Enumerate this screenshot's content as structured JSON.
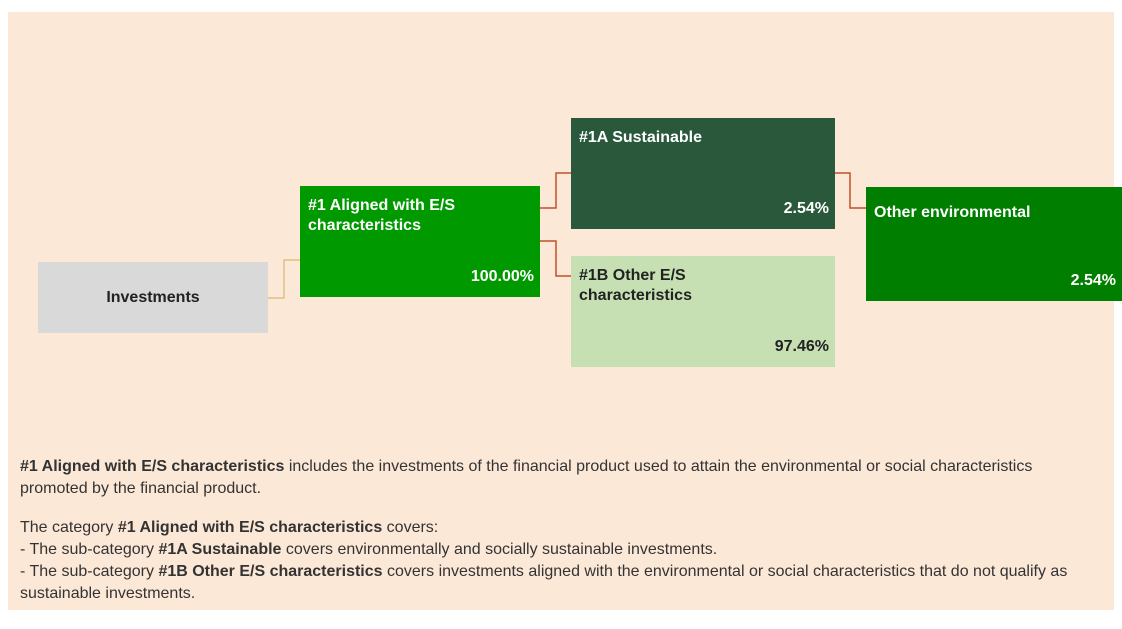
{
  "nodes": [
    {
      "label": "Investments"
    },
    {
      "label": "#1 Aligned with E/S characteristics",
      "value": "100.00%"
    },
    {
      "label": "#1A Sustainable",
      "value": "2.54%"
    },
    {
      "label": "#1B Other E/S characteristics",
      "value": "97.46%"
    },
    {
      "label": "Other environmental",
      "value": "2.54%"
    }
  ],
  "notes": [
    [
      {
        "text": "#1 Aligned with E/S characteristics",
        "bold": true
      },
      {
        "text": " includes the investments of the financial product used to attain the environmental or social characteristics promoted by the financial product."
      }
    ],
    [
      {
        "text": "The category "
      },
      {
        "text": "#1 Aligned with E/S characteristics",
        "bold": true
      },
      {
        "text": " covers:"
      }
    ],
    [
      {
        "text": "- The sub-category "
      },
      {
        "text": "#1A Sustainable",
        "bold": true
      },
      {
        "text": " covers environmentally and socially sustainable investments."
      }
    ],
    [
      {
        "text": "- The sub-category "
      },
      {
        "text": "#1B Other E/S characteristics",
        "bold": true
      },
      {
        "text": " covers investments aligned with the environmental or social characteristics that do not qualify as sustainable investments."
      }
    ]
  ]
}
